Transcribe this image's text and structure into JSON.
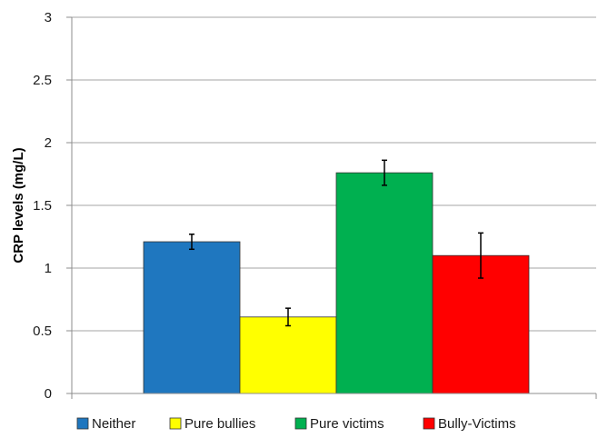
{
  "chart_data": {
    "type": "bar",
    "title": "",
    "xlabel": "",
    "ylabel": "CRP levels (mg/L)",
    "ylim": [
      0,
      3
    ],
    "yticks": [
      0,
      0.5,
      1,
      1.5,
      2,
      2.5,
      3
    ],
    "ytick_labels": [
      "0",
      "0.5",
      "1",
      "1.5",
      "2",
      "2.5",
      "3"
    ],
    "grid": true,
    "legend_position": "bottom",
    "series": [
      {
        "name": "Neither",
        "value": 1.21,
        "error": 0.06,
        "color": "#1F77BF"
      },
      {
        "name": "Pure bullies",
        "value": 0.61,
        "error": 0.07,
        "color": "#FFFF00"
      },
      {
        "name": "Pure victims",
        "value": 1.76,
        "error": 0.1,
        "color": "#00B050"
      },
      {
        "name": "Bully-Victims",
        "value": 1.1,
        "error": 0.18,
        "color": "#FF0000"
      }
    ]
  }
}
